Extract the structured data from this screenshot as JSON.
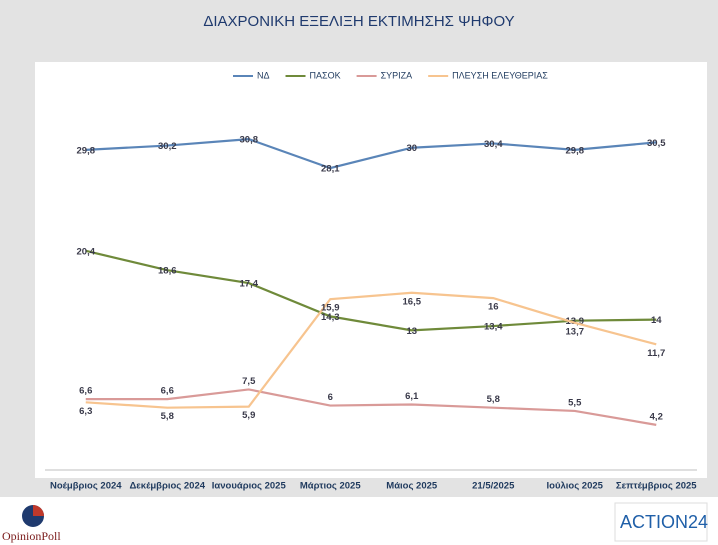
{
  "chart_data": {
    "type": "line",
    "title": "ΔΙΑΧΡΟΝΙΚΗ ΕΞΕΛΙΞΗ ΕΚΤΙΜΗΣΗΣ ΨΗΦΟΥ",
    "categories": [
      "Νοέμβριος 2024",
      "Δεκέμβριος 2024",
      "Ιανουάριος 2025",
      "Μάρτιος 2025",
      "Μάιος 2025",
      "21/5/2025",
      "Ιούλιος 2025",
      "Σεπτέμβριος 2025"
    ],
    "series": [
      {
        "name": "ΝΔ",
        "color": "#5a85b8",
        "values": [
          29.8,
          30.2,
          30.8,
          28.1,
          30,
          30.4,
          29.8,
          30.5
        ],
        "value_labels": [
          "29,8",
          "30,2",
          "30,8",
          "28,1",
          "30",
          "30,4",
          "29,8",
          "30,5"
        ]
      },
      {
        "name": "ΠΑΣΟΚ",
        "color": "#6f8a3a",
        "values": [
          20.4,
          18.6,
          17.4,
          14.3,
          13,
          13.4,
          13.9,
          14
        ],
        "value_labels": [
          "20,4",
          "18,6",
          "17,4",
          "14,3",
          "13",
          "13,4",
          "13,9",
          "14"
        ]
      },
      {
        "name": "ΣΥΡΙΖΑ",
        "color": "#d99a98",
        "values": [
          6.6,
          6.6,
          7.5,
          6,
          6.1,
          5.8,
          5.5,
          4.2
        ],
        "value_labels": [
          "6,6",
          "6,6",
          "7,5",
          "6",
          "6,1",
          "5,8",
          "5,5",
          "4,2"
        ]
      },
      {
        "name": "ΠΛΕΥΣΗ ΕΛΕΥΘΕΡΙΑΣ",
        "color": "#f7c48f",
        "values": [
          6.3,
          5.8,
          5.9,
          15.9,
          16.5,
          16,
          13.7,
          11.7
        ],
        "value_labels": [
          "6,3",
          "5,8",
          "5,9",
          "15,9",
          "16,5",
          "16",
          "13,7",
          "11,7"
        ]
      }
    ],
    "ylim": [
      0,
      35
    ],
    "legend": "top"
  },
  "logos": {
    "left": "OpinionPoll",
    "right": "ACTION24"
  }
}
